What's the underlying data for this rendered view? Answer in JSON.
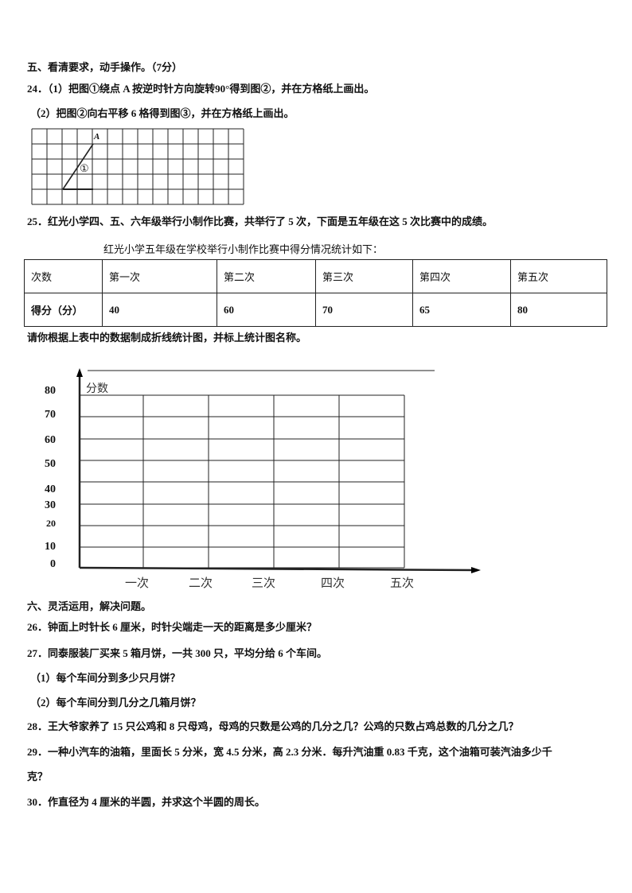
{
  "section5": {
    "heading": "五、看清要求，动手操作。（7分）",
    "q24_1": "24．（1）把图①绕点 A 按逆时针方向旋转90°得到图②，并在方格纸上画出。",
    "q24_2": "（2）把图②向右平移 6 格得到图③，并在方格纸上画出。",
    "grid": {
      "point_label": "A",
      "shape_label": "①"
    },
    "q25": "25．红光小学四、五、六年级举行小制作比赛，共举行了 5 次，下面是五年级在这 5 次比赛中的成绩。",
    "table_title": "红光小学五年级在学校举行小制作比赛中得分情况统计如下：",
    "table": {
      "header": [
        "次数",
        "第一次",
        "第二次",
        "第三次",
        "第四次",
        "第五次"
      ],
      "row": [
        "得分（分）",
        "40",
        "60",
        "70",
        "65",
        "80"
      ]
    },
    "instruction": "请你根据上表中的数据制成折线统计图，并标上统计图名称。",
    "blank_chart": {
      "y_axis_label": "分数",
      "y_ticks": [
        "80",
        "70",
        "60",
        "50",
        "40",
        "30",
        "20",
        "10",
        "0"
      ],
      "x_ticks": [
        "一次",
        "二次",
        "三次",
        "四次",
        "五次"
      ]
    }
  },
  "section6": {
    "heading": "六、灵活运用，解决问题。",
    "q26": "26．钟面上时针长 6 厘米，时针尖端走一天的距离是多少厘米？",
    "q27": "27．同泰服装厂买来 5 箱月饼，一共 300 只，平均分给 6 个车间。",
    "q27_1": "（1）每个车间分到多少只月饼？",
    "q27_2": "（2）每个车间分到几分之几箱月饼？",
    "q28": "28．王大爷家养了 15 只公鸡和 8 只母鸡，母鸡的只数是公鸡的几分之几？公鸡的只数占鸡总数的几分之几？",
    "q29a": "29．一种小汽车的油箱，里面长 5 分米，宽 4.5 分米，高 2.3 分米．每升汽油重 0.83 千克，这个油箱可装汽油多少千",
    "q29b": "克？",
    "q30": "30．作直径为 4 厘米的半圆，并求这个半圆的周长。"
  }
}
